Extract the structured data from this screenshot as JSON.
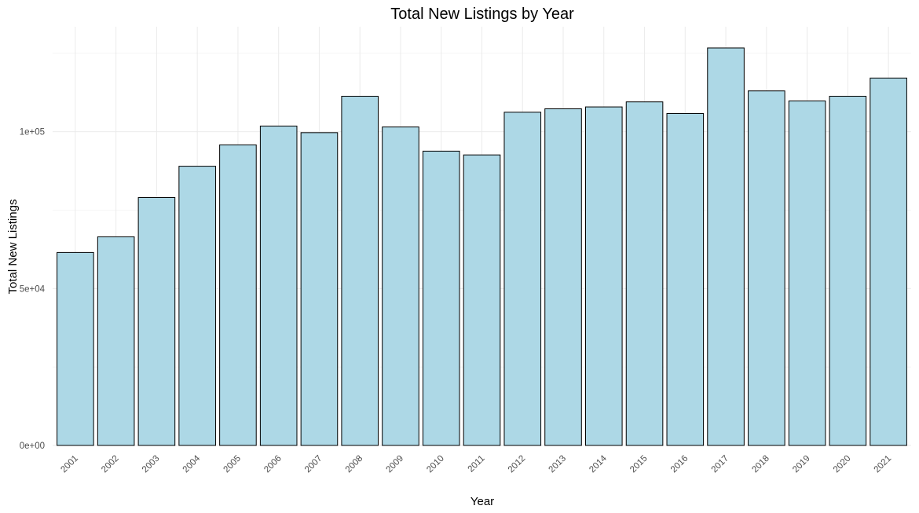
{
  "chart_data": {
    "type": "bar",
    "title": "Total New Listings by Year",
    "xlabel": "Year",
    "ylabel": "Total New Listings",
    "categories": [
      "2001",
      "2002",
      "2003",
      "2004",
      "2005",
      "2006",
      "2007",
      "2008",
      "2009",
      "2010",
      "2011",
      "2012",
      "2013",
      "2014",
      "2015",
      "2016",
      "2017",
      "2018",
      "2019",
      "2020",
      "2021"
    ],
    "values": [
      61500,
      66500,
      79000,
      89000,
      95800,
      101800,
      99700,
      111300,
      101500,
      93800,
      92600,
      106200,
      107300,
      107900,
      109500,
      105800,
      126700,
      113000,
      109800,
      111300,
      117100
    ],
    "ylim": [
      0,
      126700
    ],
    "yticks": [
      {
        "value": 0,
        "label": "0e+00"
      },
      {
        "value": 50000,
        "label": "5e+04"
      },
      {
        "value": 100000,
        "label": "1e+05"
      }
    ],
    "grid": true,
    "bar_fill": "#add8e6",
    "bar_outline": "#000000",
    "legend": "none"
  }
}
